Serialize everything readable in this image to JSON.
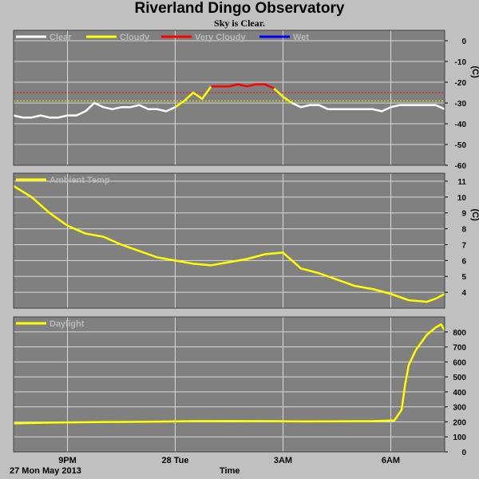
{
  "title": "Riverland Dingo Observatory",
  "subtitle": "Sky is Clear.",
  "xlabel": "Time",
  "date_label": "27 Mon May 2013",
  "colors": {
    "background": "#c0c0c0",
    "plot_bg": "#808080",
    "grid": "#d8d8d8",
    "clear": "#ffffff",
    "cloudy": "#ffff00",
    "very_cloudy": "#ff0000",
    "wet": "#0000ff",
    "ambient": "#ffff00",
    "daylight": "#ffff00"
  },
  "chart_data": [
    {
      "type": "line",
      "name": "sky",
      "legend": [
        "Clear",
        "Cloudy",
        "Very Cloudy",
        "Wet"
      ],
      "ylabel": "(C)",
      "ylim": [
        -60,
        5
      ],
      "yticks": [
        "0",
        "-10",
        "-20",
        "-30",
        "-40",
        "-50",
        "-60"
      ],
      "threshold_lines": [
        {
          "value": -25,
          "color": "#ff0000"
        },
        {
          "value": -29,
          "color": "#ffff00"
        }
      ],
      "x_hours": [
        0,
        0.25,
        0.5,
        0.75,
        1.0,
        1.25,
        1.5,
        1.75,
        2.0,
        2.25,
        2.5,
        2.75,
        3.0,
        3.25,
        3.5,
        3.75,
        4.0,
        4.25,
        4.5,
        4.75,
        5.0,
        5.25,
        5.5,
        5.75,
        6.0,
        6.25,
        6.5,
        6.75,
        7.0,
        7.25,
        7.5,
        7.75,
        8.0,
        8.25,
        8.5,
        8.75,
        9.0,
        9.25,
        9.5,
        9.75,
        10.0,
        10.25,
        10.5,
        10.75,
        11.0,
        11.25,
        11.5,
        11.75,
        12.0
      ],
      "y": [
        -36,
        -37,
        -37,
        -36,
        -37,
        -37,
        -36,
        -36,
        -34,
        -30,
        -32,
        -33,
        -32,
        -32,
        -31,
        -33,
        -33,
        -34,
        -32,
        -29,
        -25,
        -28,
        -22,
        -22,
        -22,
        -21,
        -22,
        -21,
        -21,
        -23,
        -27,
        -30,
        -32,
        -31,
        -31,
        -33,
        -33,
        -33,
        -33,
        -33,
        -33,
        -34,
        -32,
        -31,
        -31,
        -31,
        -31,
        -31,
        -33
      ],
      "segments": [
        {
          "from": 0,
          "to": 18,
          "state": "clear"
        },
        {
          "from": 18,
          "to": 22,
          "state": "cloudy"
        },
        {
          "from": 22,
          "to": 29,
          "state": "very_cloudy"
        },
        {
          "from": 29,
          "to": 31,
          "state": "cloudy"
        },
        {
          "from": 31,
          "to": 48,
          "state": "clear"
        }
      ]
    },
    {
      "type": "line",
      "name": "ambient",
      "legend": [
        "Ambient Temp"
      ],
      "ylabel": "(C)",
      "ylim": [
        3,
        11.5
      ],
      "yticks": [
        "11",
        "10",
        "9",
        "8",
        "7",
        "6",
        "5",
        "4"
      ],
      "x_hours": [
        0,
        0.5,
        1.0,
        1.5,
        2.0,
        2.5,
        3.0,
        3.5,
        4.0,
        4.5,
        5.0,
        5.5,
        6.0,
        6.5,
        7.0,
        7.5,
        8.0,
        8.5,
        9.0,
        9.5,
        10.0,
        10.5,
        11.0,
        11.5,
        11.75,
        12.0
      ],
      "y": [
        10.7,
        10.0,
        9.0,
        8.2,
        7.7,
        7.5,
        7.0,
        6.6,
        6.2,
        6.0,
        5.8,
        5.7,
        5.9,
        6.1,
        6.4,
        6.5,
        5.5,
        5.2,
        4.8,
        4.4,
        4.2,
        3.9,
        3.5,
        3.4,
        3.6,
        3.9
      ]
    },
    {
      "type": "line",
      "name": "daylight",
      "legend": [
        "Daylight"
      ],
      "ylabel": "",
      "ylim": [
        0,
        900
      ],
      "yticks": [
        "800",
        "700",
        "600",
        "500",
        "400",
        "300",
        "200",
        "100",
        "0"
      ],
      "x_hours": [
        0,
        1,
        2,
        3,
        4,
        5,
        6,
        7,
        8,
        9,
        10,
        10.6,
        10.8,
        10.9,
        11.0,
        11.2,
        11.5,
        11.75,
        11.9,
        12.0
      ],
      "y": [
        190,
        195,
        198,
        200,
        202,
        205,
        206,
        205,
        203,
        204,
        205,
        210,
        280,
        450,
        580,
        680,
        780,
        830,
        850,
        810
      ]
    }
  ],
  "x_axis": {
    "start_hour": 19.5,
    "hours_span": 12,
    "ticks": [
      {
        "label": "9PM",
        "hour": 1.5
      },
      {
        "label": "28 Tue",
        "hour": 4.5
      },
      {
        "label": "3AM",
        "hour": 7.5
      },
      {
        "label": "6AM",
        "hour": 10.5
      }
    ]
  }
}
